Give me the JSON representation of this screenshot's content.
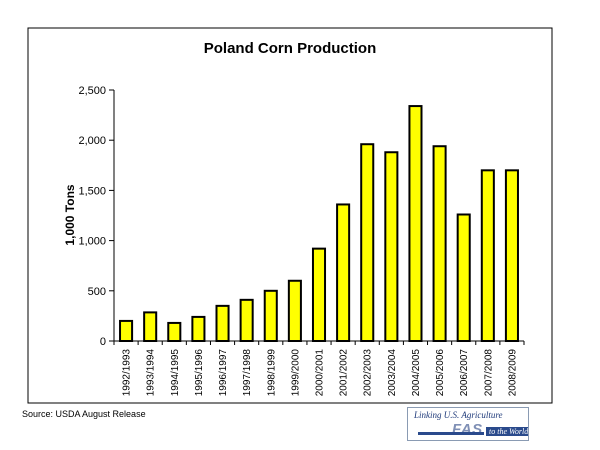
{
  "chart_data": {
    "type": "bar",
    "title": "Poland Corn Production",
    "ylabel": "1,000 Tons",
    "xlabel": "",
    "ylim": [
      0,
      2500
    ],
    "yticks": [
      0,
      500,
      1000,
      1500,
      2000,
      2500
    ],
    "ytick_labels": [
      "0",
      "500",
      "1,000",
      "1,500",
      "2,000",
      "2,500"
    ],
    "categories": [
      "1992/1993",
      "1993/1994",
      "1994/1995",
      "1995/1996",
      "1996/1997",
      "1997/1998",
      "1998/1999",
      "1999/2000",
      "2000/2001",
      "2001/2002",
      "2002/2003",
      "2003/2004",
      "2004/2005",
      "2005/2006",
      "2006/2007",
      "2007/2008",
      "2008/2009"
    ],
    "values": [
      200,
      285,
      180,
      240,
      350,
      410,
      500,
      600,
      920,
      1360,
      1960,
      1880,
      2340,
      1940,
      1260,
      1700,
      1700
    ],
    "bar_color": "#ffff00",
    "bar_edge_color": "#000000",
    "grid": false,
    "legend": "none"
  },
  "footer": {
    "source": "Source: USDA August Release"
  },
  "logo": {
    "top_text": "Linking U.S. Agriculture",
    "main_text": "FAS",
    "bottom_text": "to the World"
  }
}
